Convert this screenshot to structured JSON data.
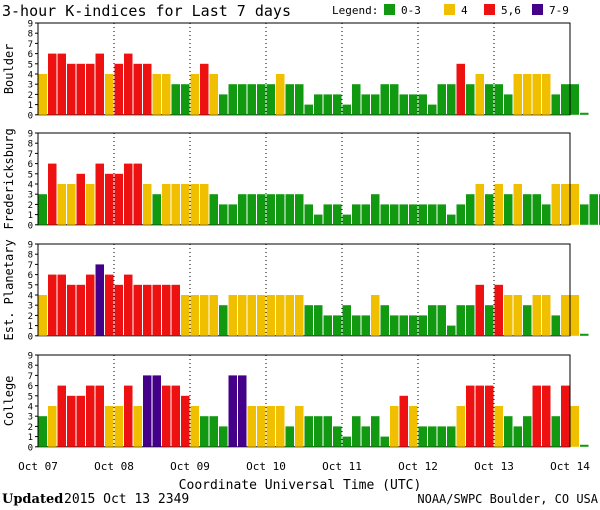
{
  "title": "3-hour K-indices for Last 7 days",
  "legend": {
    "label": "Legend:",
    "items": [
      {
        "label": "0-3",
        "color": "#119911"
      },
      {
        "label": "4",
        "color": "#f0c000"
      },
      {
        "label": "5,6",
        "color": "#ee1111"
      },
      {
        "label": "7-9",
        "color": "#440088"
      }
    ]
  },
  "footer": {
    "updated_label": "Updated",
    "updated_value": "2015 Oct 13 2349",
    "credit": "NOAA/SWPC Boulder, CO USA"
  },
  "chart_data": {
    "type": "bar",
    "xlabel": "Coordinate Universal Time (UTC)",
    "x_ticks": [
      "Oct 07",
      "Oct 08",
      "Oct 09",
      "Oct 10",
      "Oct 11",
      "Oct 12",
      "Oct 13",
      "Oct 14"
    ],
    "ylim": [
      0,
      9
    ],
    "y_ticks": [
      "0",
      "1",
      "2",
      "3",
      "4",
      "5",
      "6",
      "7",
      "8",
      "9"
    ],
    "bins_per_day": 8,
    "color_thresholds": {
      "green": "0-3",
      "yellow": "4",
      "red": "5-6",
      "purple": "7-9"
    },
    "series": [
      {
        "name": "Boulder",
        "values": [
          4,
          6,
          6,
          5,
          5,
          5,
          6,
          4,
          5,
          6,
          5,
          5,
          4,
          4,
          3,
          3,
          4,
          5,
          4,
          2,
          3,
          3,
          3,
          3,
          3,
          4,
          3,
          3,
          1,
          2,
          2,
          2,
          1,
          3,
          2,
          2,
          3,
          3,
          2,
          2,
          2,
          1,
          3,
          3,
          5,
          3,
          4,
          3,
          3,
          2,
          4,
          4,
          4,
          4,
          2,
          3,
          3,
          0
        ]
      },
      {
        "name": "Fredericksburg",
        "values": [
          3,
          6,
          4,
          4,
          5,
          4,
          6,
          5,
          5,
          6,
          6,
          4,
          3,
          4,
          4,
          4,
          4,
          4,
          3,
          2,
          2,
          3,
          3,
          3,
          3,
          3,
          3,
          3,
          2,
          1,
          2,
          2,
          1,
          2,
          2,
          3,
          2,
          2,
          2,
          2,
          2,
          2,
          2,
          1,
          2,
          3,
          4,
          3,
          4,
          3,
          4,
          3,
          3,
          2,
          4,
          4,
          4,
          2,
          3,
          3,
          0
        ]
      },
      {
        "name": "Est. Planetary",
        "values": [
          4,
          6,
          6,
          5,
          5,
          6,
          7,
          6,
          5,
          6,
          5,
          5,
          5,
          5,
          5,
          4,
          4,
          4,
          4,
          3,
          4,
          4,
          4,
          4,
          4,
          4,
          4,
          4,
          3,
          3,
          2,
          2,
          3,
          2,
          2,
          4,
          3,
          2,
          2,
          2,
          2,
          3,
          3,
          1,
          3,
          3,
          5,
          3,
          5,
          4,
          4,
          3,
          4,
          4,
          2,
          4,
          4,
          0
        ]
      },
      {
        "name": "College",
        "values": [
          3,
          4,
          6,
          5,
          5,
          6,
          6,
          4,
          4,
          6,
          4,
          7,
          7,
          6,
          6,
          5,
          4,
          3,
          3,
          2,
          7,
          7,
          4,
          4,
          4,
          4,
          2,
          4,
          3,
          3,
          3,
          2,
          1,
          3,
          2,
          3,
          1,
          4,
          5,
          4,
          2,
          2,
          2,
          2,
          4,
          6,
          6,
          6,
          4,
          3,
          2,
          3,
          6,
          6,
          3,
          6,
          4,
          0
        ]
      }
    ]
  }
}
